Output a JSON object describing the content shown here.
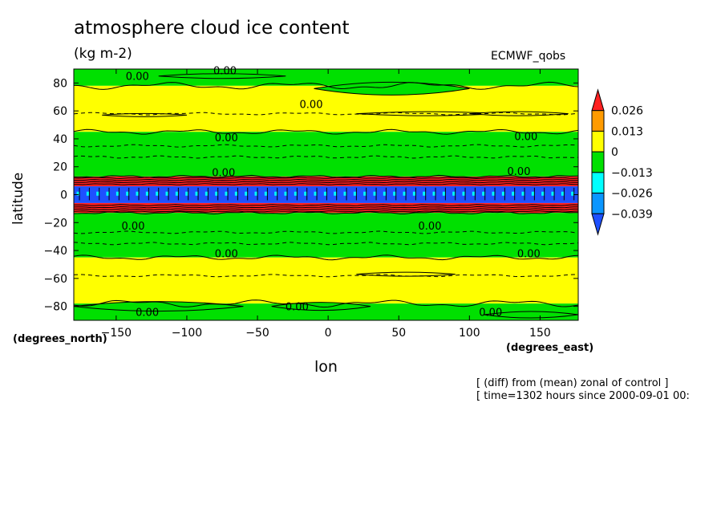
{
  "chart_data": {
    "type": "contour",
    "title": "atmosphere cloud ice content",
    "units": "(kg m-2)",
    "model": "ECMWF_qobs",
    "xlabel": "lon",
    "ylabel": "latitude",
    "x_units": "(degrees_east)",
    "y_units": "(degrees_north)",
    "xlim": [
      -180,
      177
    ],
    "ylim": [
      -90,
      90
    ],
    "x_ticks": [
      -150,
      -100,
      -50,
      0,
      50,
      100,
      150
    ],
    "x_tick_labels": [
      "−150",
      "−100",
      "−50",
      "0",
      "50",
      "100",
      "150"
    ],
    "y_ticks": [
      80,
      60,
      40,
      20,
      0,
      -20,
      -40,
      -60,
      -80
    ],
    "y_tick_labels": [
      "80",
      "60",
      "40",
      "20",
      "0",
      "−20",
      "−40",
      "−60",
      "−80"
    ],
    "colorbar": {
      "levels": [
        "0.026",
        "0.013",
        "0",
        "−0.013",
        "−0.026",
        "−0.039"
      ],
      "colors": [
        "#ff2020",
        "#ff9b00",
        "#ffff00",
        "#00e000",
        "#00ffff",
        "#0a96ff",
        "#1e50ff"
      ]
    },
    "latitude_bands": [
      {
        "lat_range": [
          78,
          90
        ],
        "value_class": "negative",
        "color": "#00e000"
      },
      {
        "lat_range": [
          45,
          78
        ],
        "value_class": "near-zero",
        "color": "#ffff00"
      },
      {
        "lat_range": [
          13,
          45
        ],
        "value_class": "negative",
        "color": "#00e000"
      },
      {
        "lat_range": [
          6,
          13
        ],
        "value_class": "strong-positive",
        "color": "#ff2020"
      },
      {
        "lat_range": [
          -6,
          6
        ],
        "value_class": "strong-negative",
        "color": "#1e50ff"
      },
      {
        "lat_range": [
          -13,
          -6
        ],
        "value_class": "strong-positive",
        "color": "#ff2020"
      },
      {
        "lat_range": [
          -45,
          -13
        ],
        "value_class": "negative",
        "color": "#00e000"
      },
      {
        "lat_range": [
          -78,
          -45
        ],
        "value_class": "near-zero",
        "color": "#ffff00"
      },
      {
        "lat_range": [
          -90,
          -78
        ],
        "value_class": "negative",
        "color": "#00e000"
      }
    ],
    "contour_labels": [
      {
        "text": "0.00",
        "lon": -135,
        "lat": 85
      },
      {
        "text": "0.00",
        "lon": -73,
        "lat": 89
      },
      {
        "text": "0.00",
        "lon": -12,
        "lat": 65
      },
      {
        "text": "0.00",
        "lon": -72,
        "lat": 41
      },
      {
        "text": "0.00",
        "lon": 140,
        "lat": 42
      },
      {
        "text": "0.00",
        "lon": -74,
        "lat": 16
      },
      {
        "text": "0.00",
        "lon": 135,
        "lat": 17
      },
      {
        "text": "0.00",
        "lon": -138,
        "lat": -22
      },
      {
        "text": "0.00",
        "lon": 72,
        "lat": -22
      },
      {
        "text": "0.00",
        "lon": -72,
        "lat": -42
      },
      {
        "text": "0.00",
        "lon": 142,
        "lat": -42
      },
      {
        "text": "0.00",
        "lon": -128,
        "lat": -84
      },
      {
        "text": "0.00",
        "lon": -22,
        "lat": -80
      },
      {
        "text": "0.00",
        "lon": 115,
        "lat": -84
      }
    ],
    "notes": [
      "[ (diff) from (mean) zonal of control ]",
      "[ time=1302 hours since 2000-09-01 00:"
    ]
  }
}
